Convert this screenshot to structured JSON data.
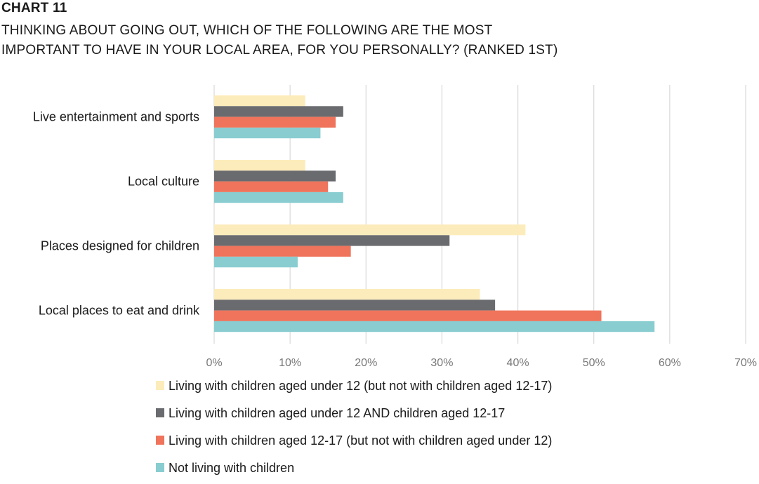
{
  "header": {
    "chart_label": "CHART 11",
    "title_line1": "THINKING ABOUT GOING OUT, WHICH OF THE FOLLOWING ARE THE MOST",
    "title_line2": "IMPORTANT TO HAVE IN YOUR LOCAL AREA, FOR YOU PERSONALLY? (RANKED 1ST)"
  },
  "chart_data": {
    "type": "bar",
    "orientation": "horizontal",
    "title": "THINKING ABOUT GOING OUT, WHICH OF THE FOLLOWING ARE THE MOST IMPORTANT TO HAVE IN YOUR LOCAL AREA, FOR YOU PERSONALLY? (RANKED 1ST)",
    "categories": [
      "Live entertainment and sports",
      "Local culture",
      "Places designed for children",
      "Local places to eat and drink"
    ],
    "series": [
      {
        "name": "Living with children aged under 12 (but not with children aged 12-17)",
        "color": "#fdecbb",
        "values": [
          12,
          12,
          41,
          35
        ]
      },
      {
        "name": "Living with children aged under 12 AND children aged 12-17",
        "color": "#6a6b6f",
        "values": [
          17,
          16,
          31,
          37
        ]
      },
      {
        "name": "Living with children aged 12-17 (but not with children aged under 12)",
        "color": "#ef745b",
        "values": [
          16,
          15,
          18,
          51
        ]
      },
      {
        "name": "Not living with children",
        "color": "#89cdd1",
        "values": [
          14,
          17,
          11,
          58
        ]
      }
    ],
    "xlim": [
      0,
      70
    ],
    "xticks": [
      "0%",
      "10%",
      "20%",
      "30%",
      "40%",
      "50%",
      "60%",
      "70%"
    ],
    "unit": "%",
    "grid": "vertical",
    "legend_position": "bottom",
    "grid_color": "#d9d9d9"
  }
}
